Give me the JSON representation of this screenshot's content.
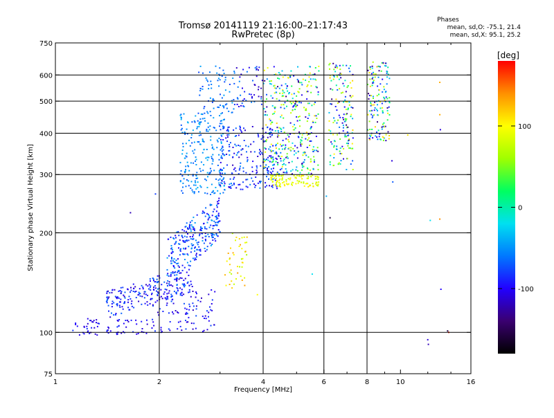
{
  "chart_data": {
    "type": "scatter",
    "title": "Tromsø 20141119 21:16:00–21:17:43",
    "subtitle": "RwPretec (8p)",
    "xlabel": "Frequency [MHz]",
    "ylabel": "Stationary phase Virtual Height [km]",
    "xscale": "log",
    "yscale": "log",
    "xlim": [
      1,
      16
    ],
    "ylim": [
      75,
      750
    ],
    "x_ticks": [
      1,
      2,
      4,
      6,
      8,
      10,
      16
    ],
    "x_tick_labels": [
      "1",
      "2",
      "4",
      "6",
      "8",
      "10",
      "16"
    ],
    "y_ticks": [
      75,
      100,
      200,
      300,
      400,
      500,
      600,
      750
    ],
    "y_tick_labels": [
      "75",
      "100",
      "200",
      "300",
      "400",
      "500",
      "600",
      "750"
    ],
    "grid_x": [
      2,
      4,
      6,
      8
    ],
    "grid_y": [
      100,
      200,
      300,
      400,
      500,
      600
    ],
    "grid": true,
    "stats": {
      "heading": "Phases",
      "line_o": "mean, sd,O:  -75.1, 21.4",
      "line_x": "mean, sd,X:  95.1, 25.2"
    },
    "colorbar": {
      "label": "[deg]",
      "colormap": "rainbow",
      "range": [
        -180,
        180
      ],
      "ticks": [
        100,
        0,
        -100
      ],
      "tick_labels": [
        "100",
        "0",
        "-100"
      ],
      "colors": [
        "#000000",
        "#3a0070",
        "#2200ff",
        "#0078ff",
        "#00e0f0",
        "#00ff60",
        "#a0ff00",
        "#ffff00",
        "#ff9000",
        "#ff0000"
      ]
    },
    "clusters": [
      {
        "f": [
          1.1,
          1.85
        ],
        "h": [
          98,
          110
        ],
        "phase": [
          -115,
          -80
        ],
        "n": 70,
        "skew": 0
      },
      {
        "f": [
          1.4,
          2.5
        ],
        "h": [
          110,
          160
        ],
        "phase": [
          -120,
          -60
        ],
        "n": 220,
        "skew": 0.3
      },
      {
        "f": [
          1.9,
          2.9
        ],
        "h": [
          100,
          135
        ],
        "phase": [
          -120,
          -70
        ],
        "n": 110,
        "skew": 0
      },
      {
        "f": [
          2.1,
          3.0
        ],
        "h": [
          140,
          260
        ],
        "phase": [
          -110,
          -40
        ],
        "n": 260,
        "skew": 0.5
      },
      {
        "f": [
          2.3,
          3.1
        ],
        "h": [
          260,
          460
        ],
        "phase": [
          -75,
          -35
        ],
        "n": 240,
        "skew": 0
      },
      {
        "f": [
          2.6,
          3.3
        ],
        "h": [
          460,
          640
        ],
        "phase": [
          -80,
          -40
        ],
        "n": 70,
        "skew": 0
      },
      {
        "f": [
          3.0,
          4.4
        ],
        "h": [
          270,
          420
        ],
        "phase": [
          -120,
          -50
        ],
        "n": 220,
        "skew": 0
      },
      {
        "f": [
          3.1,
          3.6
        ],
        "h": [
          135,
          200
        ],
        "phase": [
          60,
          135
        ],
        "n": 45,
        "skew": 0
      },
      {
        "f": [
          3.3,
          4.0
        ],
        "h": [
          480,
          640
        ],
        "phase": [
          -120,
          -50
        ],
        "n": 50,
        "skew": 0
      },
      {
        "f": [
          4.2,
          5.8
        ],
        "h": [
          275,
          300
        ],
        "phase": [
          70,
          110
        ],
        "n": 110,
        "skew": 0
      },
      {
        "f": [
          4.0,
          5.8
        ],
        "h": [
          300,
          460
        ],
        "phase": [
          -130,
          120
        ],
        "n": 230,
        "skew": 0
      },
      {
        "f": [
          4.0,
          5.8
        ],
        "h": [
          460,
          640
        ],
        "phase": [
          -140,
          110
        ],
        "n": 150,
        "skew": 0
      },
      {
        "f": [
          6.2,
          7.3
        ],
        "h": [
          310,
          650
        ],
        "phase": [
          -140,
          120
        ],
        "n": 170,
        "skew": 0
      },
      {
        "f": [
          8.0,
          9.3
        ],
        "h": [
          380,
          660
        ],
        "phase": [
          -140,
          120
        ],
        "n": 150,
        "skew": 0
      }
    ],
    "outliers": [
      {
        "f": 1.65,
        "h": 230,
        "phase": -120
      },
      {
        "f": 1.95,
        "h": 262,
        "phase": -80
      },
      {
        "f": 3.85,
        "h": 130,
        "phase": 100
      },
      {
        "f": 5.55,
        "h": 150,
        "phase": -20
      },
      {
        "f": 6.1,
        "h": 258,
        "phase": -40
      },
      {
        "f": 6.25,
        "h": 222,
        "phase": -160
      },
      {
        "f": 9.45,
        "h": 330,
        "phase": -110
      },
      {
        "f": 9.5,
        "h": 285,
        "phase": -70
      },
      {
        "f": 10.5,
        "h": 395,
        "phase": 110
      },
      {
        "f": 12.2,
        "h": 218,
        "phase": -20
      },
      {
        "f": 13.0,
        "h": 570,
        "phase": 130
      },
      {
        "f": 13.0,
        "h": 455,
        "phase": 130
      },
      {
        "f": 13.05,
        "h": 410,
        "phase": -110
      },
      {
        "f": 13.0,
        "h": 220,
        "phase": 140
      },
      {
        "f": 13.1,
        "h": 135,
        "phase": -100
      },
      {
        "f": 12.0,
        "h": 95,
        "phase": -110
      },
      {
        "f": 12.05,
        "h": 92,
        "phase": -120
      },
      {
        "f": 13.8,
        "h": 100,
        "phase": 170
      },
      {
        "f": 13.7,
        "h": 101,
        "phase": -160
      }
    ]
  }
}
